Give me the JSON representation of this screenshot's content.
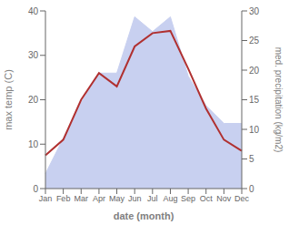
{
  "chart_data": {
    "type": "line",
    "xlabel": "date (month)",
    "ylabel": "max temp (C)",
    "y2label": "med. precipitation (kg/m2)",
    "categories": [
      "Jan",
      "Feb",
      "Mar",
      "Apr",
      "May",
      "Jun",
      "Jul",
      "Aug",
      "Sep",
      "Oct",
      "Nov",
      "Dec"
    ],
    "series": [
      {
        "type": "area",
        "axis": "y2",
        "color": "#c8d0f0",
        "values": [
          2.5,
          8.5,
          14.5,
          19.5,
          19.5,
          29.0,
          26.5,
          29.0,
          19.0,
          14.0,
          11.0,
          11.0
        ]
      },
      {
        "type": "line",
        "color": "#b03030",
        "values": [
          7.5,
          11.0,
          20.0,
          26.0,
          23.0,
          32.0,
          35.0,
          35.5,
          27.0,
          18.0,
          11.0,
          8.5
        ]
      }
    ],
    "ylim": [
      0,
      40
    ],
    "yticks": [
      0,
      10,
      20,
      30,
      40
    ],
    "y2lim": [
      0,
      30
    ],
    "y2ticks": [
      0,
      5,
      10,
      15,
      20,
      25,
      30
    ],
    "grid": false
  }
}
